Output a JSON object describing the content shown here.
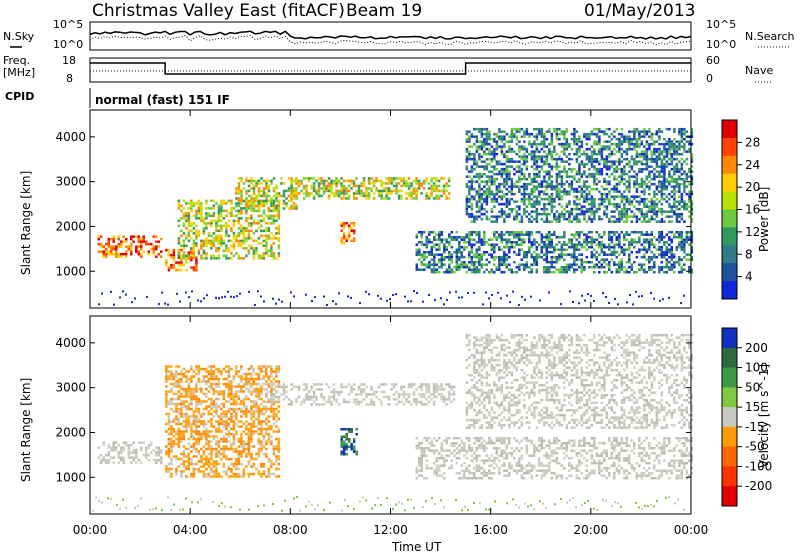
{
  "header": {
    "title": "Christmas Valley East (fitACF)",
    "beam": "Beam 19",
    "date": "01/May/2013"
  },
  "side_labels": {
    "nsky": "N.Sky",
    "nsearch": "N.Search",
    "freq": "Freq.",
    "freq_unit": "[MHz]",
    "nave": "Nave",
    "cpid": "CPID",
    "cpid_value": "normal (fast) 151 IF"
  },
  "noise_axis": {
    "left_ticks": [
      "10^5",
      "10^0"
    ],
    "right_ticks": [
      "10^5",
      "10^0"
    ]
  },
  "freq_axis": {
    "left_ticks": [
      "18",
      "8"
    ],
    "right_ticks": [
      "60",
      "0"
    ]
  },
  "chart_data": [
    {
      "type": "heatmap",
      "name": "power-panel",
      "ylabel": "Slant Range [km]",
      "colorbar_label": "Power [dB]",
      "colorbar_ticks": [
        "28",
        "24",
        "20",
        "16",
        "12",
        "8",
        "4"
      ],
      "colorbar_colors": [
        "#e00000",
        "#ff4400",
        "#ff8800",
        "#ffcc00",
        "#b8e000",
        "#6cc840",
        "#2e9a60",
        "#307a88",
        "#2050a0",
        "#1028d8"
      ],
      "xlim_hours": [
        0,
        24
      ],
      "ylim_km": [
        180,
        4600
      ],
      "y_ticks": [
        1000,
        2000,
        3000,
        4000
      ],
      "echo_bands": [
        {
          "x": [
            0.3,
            2.8
          ],
          "r_lo": 1300,
          "r_hi": 1800,
          "level": "high"
        },
        {
          "x": [
            3.0,
            4.2
          ],
          "r_lo": 1000,
          "r_hi": 1500,
          "level": "high"
        },
        {
          "x": [
            3.5,
            7.5
          ],
          "r_lo": 1300,
          "r_hi": 2600,
          "level": "mid"
        },
        {
          "x": [
            5.8,
            8.2
          ],
          "r_lo": 2400,
          "r_hi": 3100,
          "level": "mid"
        },
        {
          "x": [
            8.0,
            14.3
          ],
          "r_lo": 2600,
          "r_hi": 3100,
          "level": "mid"
        },
        {
          "x": [
            13.0,
            24.0
          ],
          "r_lo": 1000,
          "r_hi": 1900,
          "level": "low"
        },
        {
          "x": [
            15.0,
            24.0
          ],
          "r_lo": 2100,
          "r_hi": 4200,
          "level": "low"
        },
        {
          "x": [
            10.0,
            10.5
          ],
          "r_lo": 1600,
          "r_hi": 2100,
          "level": "high"
        }
      ]
    },
    {
      "type": "heatmap",
      "name": "velocity-panel",
      "ylabel": "Slant Range [km]",
      "colorbar_label": "Velocity [m s^-1]",
      "colorbar_ticks": [
        "200",
        "100",
        "50",
        "15",
        "-15",
        "-50",
        "-100",
        "-200"
      ],
      "colorbar_colors": [
        "#1030c0",
        "#2e6a40",
        "#3a9a40",
        "#80c840",
        "#c8c8c0",
        "#ff9a00",
        "#ff6600",
        "#ff3300",
        "#e00000"
      ],
      "xlim_hours": [
        0,
        24
      ],
      "ylim_km": [
        180,
        4600
      ],
      "y_ticks": [
        1000,
        2000,
        3000,
        4000
      ],
      "echo_bands": [
        {
          "x": [
            0.3,
            2.8
          ],
          "r_lo": 1300,
          "r_hi": 1800,
          "level": "grey"
        },
        {
          "x": [
            3.0,
            7.5
          ],
          "r_lo": 1000,
          "r_hi": 3500,
          "level": "orange"
        },
        {
          "x": [
            7.0,
            14.5
          ],
          "r_lo": 2600,
          "r_hi": 3100,
          "level": "grey"
        },
        {
          "x": [
            13.0,
            24.0
          ],
          "r_lo": 1000,
          "r_hi": 1900,
          "level": "grey"
        },
        {
          "x": [
            15.0,
            24.0
          ],
          "r_lo": 2100,
          "r_hi": 4200,
          "level": "grey"
        },
        {
          "x": [
            10.0,
            10.6
          ],
          "r_lo": 1500,
          "r_hi": 2100,
          "level": "blue"
        }
      ]
    }
  ],
  "x_axis": {
    "ticks": [
      "00:00",
      "04:00",
      "08:00",
      "12:00",
      "16:00",
      "20:00",
      "00:00"
    ],
    "tick_hours": [
      0,
      4,
      8,
      12,
      16,
      20,
      24
    ],
    "label": "Time UT"
  }
}
